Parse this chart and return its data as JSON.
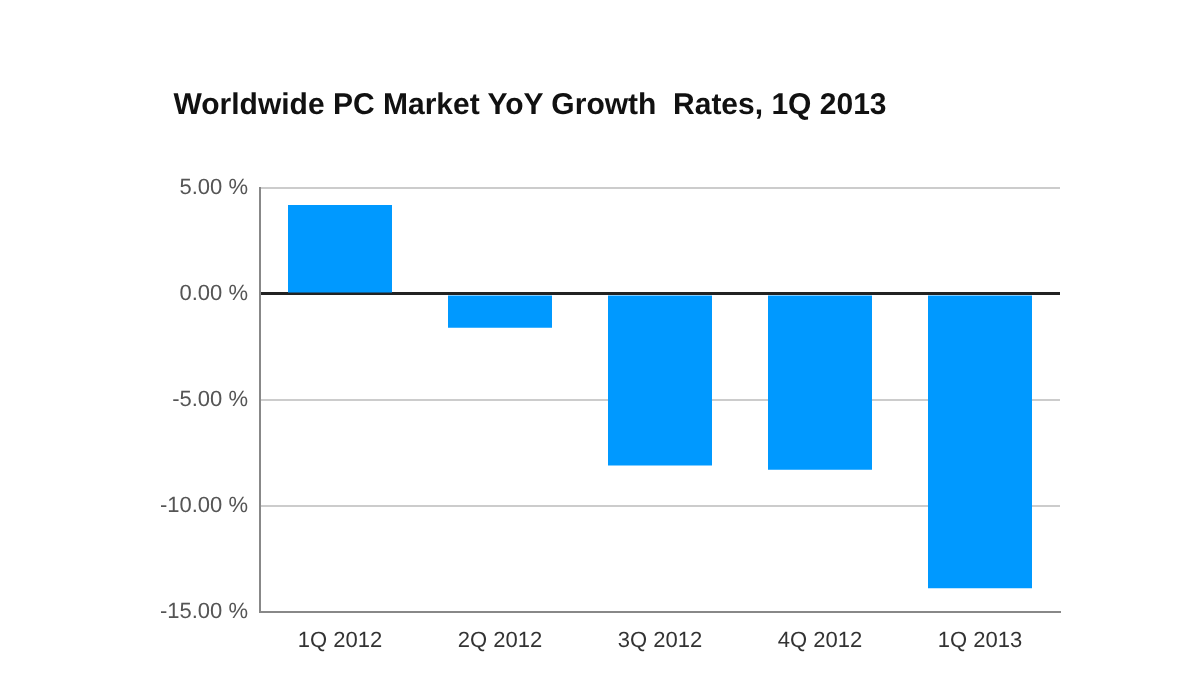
{
  "chart_data": {
    "type": "bar",
    "title": "Worldwide PC Market YoY Growth  Rates, 1Q 2013",
    "categories": [
      "1Q 2012",
      "2Q 2012",
      "3Q 2012",
      "4Q 2012",
      "1Q 2013"
    ],
    "values": [
      4.2,
      -1.6,
      -8.1,
      -8.3,
      -13.9
    ],
    "color": "#0099ff",
    "ylim": [
      -15,
      5
    ],
    "yticks": [
      {
        "value": 5,
        "label": "5.00 %"
      },
      {
        "value": 0,
        "label": "0.00 %"
      },
      {
        "value": -5,
        "label": "-5.00 %"
      },
      {
        "value": -10,
        "label": "-10.00 %"
      },
      {
        "value": -15,
        "label": "-15.00 %"
      }
    ],
    "grid": "y"
  }
}
